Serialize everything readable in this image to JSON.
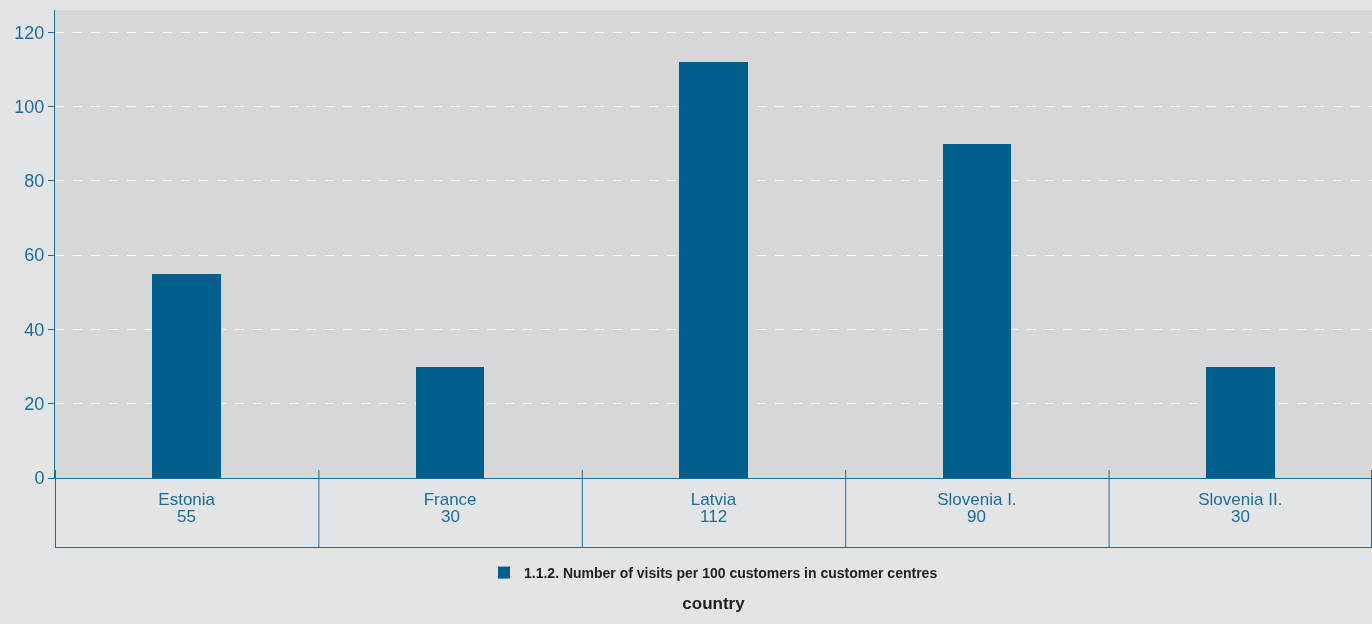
{
  "chart_data": {
    "type": "bar",
    "xlabel": "country",
    "categories": [
      "Estonia",
      "France",
      "Latvia",
      "Slovenia I.",
      "Slovenia II."
    ],
    "series": [
      {
        "name": "1.1.2. Number of visits per 100 customers in customer centres",
        "color": "#005f8c",
        "values": [
          55,
          30,
          112,
          90,
          30
        ]
      }
    ],
    "ylim": [
      0,
      126
    ],
    "yticks": [
      0,
      20,
      40,
      60,
      80,
      100,
      120
    ],
    "grid": "y",
    "legend": "bottom",
    "data_labels": true
  }
}
